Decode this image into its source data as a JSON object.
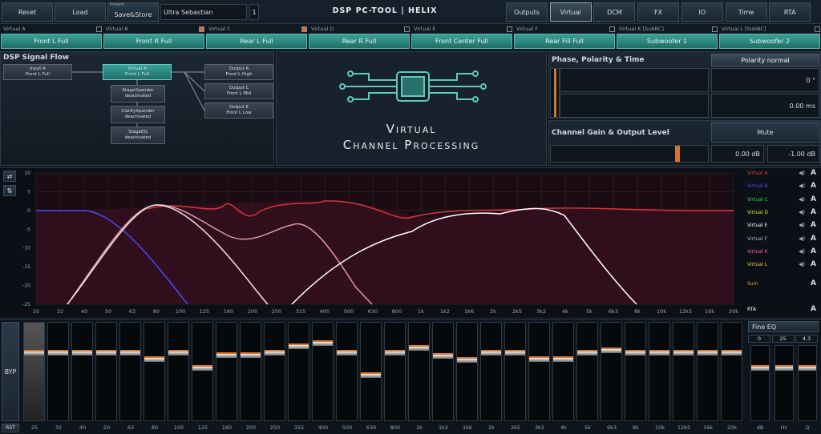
{
  "toolbar": {
    "buttons": [
      "Reset",
      "Load",
      "Save&Store"
    ],
    "presets_label": "Presets",
    "preset_name": "Ultra Sebastian",
    "preset_number": "1",
    "title": "DSP PC-TOOL | HELIX",
    "nav": [
      "Outputs",
      "Virtual",
      "DCM",
      "FX",
      "IO",
      "Time",
      "RTA"
    ],
    "active_nav": "Virtual"
  },
  "channels": [
    {
      "label": "Virtual A",
      "button": "Front L Full"
    },
    {
      "label": "Virtual B",
      "button": "Front R Full"
    },
    {
      "label": "Virtual C",
      "button": "Rear L Full"
    },
    {
      "label": "Virtual D",
      "button": "Rear R Full"
    },
    {
      "label": "Virtual E",
      "button": "Front Center Full"
    },
    {
      "label": "Virtual F",
      "button": "Rear Fill Full"
    },
    {
      "label": "Virtual K [SubBC]",
      "button": "Subwoofer 1"
    },
    {
      "label": "Virtual L [SubBC]",
      "button": "Subwoofer 2"
    }
  ],
  "signal_flow": {
    "title": "DSP Signal Flow",
    "input": [
      "Input A",
      "Front L Full"
    ],
    "virtual": [
      "Virtual A",
      "Front L Full"
    ],
    "modules": [
      [
        "StageXpander",
        "deactivated"
      ],
      [
        "ClarityXpander",
        "deactivated"
      ],
      [
        "StageEQ",
        "deactivated"
      ]
    ],
    "outputs": [
      [
        "Output A",
        "Front L High"
      ],
      [
        "Output C",
        "Front L Mid"
      ],
      [
        "Output E",
        "Front L Low"
      ]
    ]
  },
  "center": {
    "line1": "Virtual",
    "line2": "Channel Processing"
  },
  "phase": {
    "title": "Phase, Polarity & Time",
    "polarity": "Polarity normal",
    "phase": "0 °",
    "delay": "0.00 ms"
  },
  "gain": {
    "title": "Channel Gain & Output Level",
    "mute": "Mute",
    "gain": "0.00 dB",
    "level": "-1.00 dB"
  },
  "graph": {
    "yticks": [
      10,
      5,
      0,
      -5,
      -10,
      -15,
      -20,
      -25
    ],
    "xlabels": [
      "25",
      "32",
      "40",
      "50",
      "63",
      "80",
      "100",
      "125",
      "160",
      "200",
      "250",
      "315",
      "400",
      "500",
      "630",
      "800",
      "1k",
      "1k2",
      "1k6",
      "2k",
      "2k5",
      "3k2",
      "4k",
      "5k",
      "6k3",
      "8k",
      "10k",
      "12k5",
      "16k",
      "20k"
    ]
  },
  "legend": [
    {
      "name": "Virtual A",
      "color": "#e23a3a"
    },
    {
      "name": "Virtual B",
      "color": "#4b4bff"
    },
    {
      "name": "Virtual C",
      "color": "#3ed43e"
    },
    {
      "name": "Virtual D",
      "color": "#e4e42a"
    },
    {
      "name": "Virtual E",
      "color": "#ffffff"
    },
    {
      "name": "Virtual F",
      "color": "#b8b8b8"
    },
    {
      "name": "Virtual K",
      "color": "#ff5fc8"
    },
    {
      "name": "Virtual L",
      "color": "#e8c84a"
    },
    {
      "name": "Sum",
      "color": "#e8a020"
    },
    {
      "name": "RTA",
      "color": "#ffffff"
    }
  ],
  "eq": {
    "bypass": "BYP",
    "reset": "RST",
    "bands": [
      "25",
      "32",
      "40",
      "50",
      "63",
      "80",
      "100",
      "125",
      "160",
      "200",
      "250",
      "315",
      "400",
      "500",
      "630",
      "800",
      "1k",
      "1k2",
      "1k6",
      "2k",
      "2k5",
      "3k2",
      "4k",
      "5k",
      "6k3",
      "8k",
      "10k",
      "12k5",
      "16k",
      "20k"
    ],
    "mode": "Fine EQ",
    "params": [
      "0",
      "25",
      "4.3"
    ],
    "units": [
      "dB",
      "Hz",
      "Q"
    ]
  }
}
